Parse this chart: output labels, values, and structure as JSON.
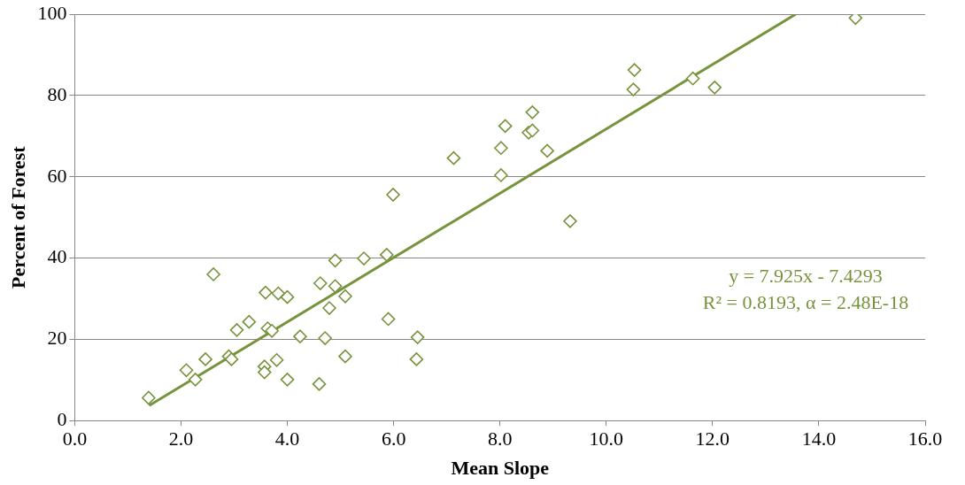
{
  "chart_data": {
    "type": "scatter",
    "xlabel": "Mean Slope",
    "ylabel": "Percent of Forest",
    "xlim": [
      0,
      16
    ],
    "xticks": [
      {
        "value": 0,
        "label": "0.0"
      },
      {
        "value": 2,
        "label": "2.0"
      },
      {
        "value": 4,
        "label": "4.0"
      },
      {
        "value": 6,
        "label": "6.0"
      },
      {
        "value": 8,
        "label": "8.0"
      },
      {
        "value": 10,
        "label": "10.0"
      },
      {
        "value": 12,
        "label": "12.0"
      },
      {
        "value": 14,
        "label": "14.0"
      },
      {
        "value": 16,
        "label": "16.0"
      }
    ],
    "ylim": [
      0,
      100
    ],
    "yticks": [
      0,
      20,
      40,
      60,
      80,
      100
    ],
    "grid": "y",
    "legend": false,
    "marker": "diamond",
    "series": [
      {
        "color": "#77933c",
        "x": [
          1.39,
          2.1,
          2.27,
          2.46,
          2.61,
          2.9,
          2.95,
          3.05,
          3.28,
          3.59,
          3.57,
          3.57,
          3.63,
          3.71,
          3.8,
          3.83,
          4.0,
          4.0,
          4.24,
          4.6,
          4.62,
          4.71,
          4.79,
          4.9,
          4.9,
          5.09,
          5.09,
          5.44,
          5.87,
          5.9,
          5.99,
          6.45,
          6.43,
          7.13,
          8.02,
          8.02,
          8.1,
          8.54,
          8.61,
          8.61,
          8.89,
          9.32,
          10.51,
          10.53,
          11.63,
          12.04,
          14.69
        ],
        "values": [
          5.6,
          12.4,
          10.1,
          15.1,
          36,
          15.8,
          15.1,
          22.3,
          24.3,
          31.5,
          13.3,
          11.9,
          22.7,
          22.1,
          14.9,
          31.3,
          30.4,
          10.1,
          20.7,
          9,
          33.8,
          20.3,
          27.7,
          33.1,
          39.4,
          30.6,
          15.8,
          39.9,
          40.8,
          25,
          55.6,
          20.5,
          15.1,
          64.6,
          60.4,
          67.1,
          72.5,
          70.9,
          71.4,
          75.9,
          66.4,
          49.1,
          81.5,
          86.3,
          84.2,
          82,
          99.1
        ]
      },
      {
        "type": "line",
        "color": "#77933c",
        "marker": "none",
        "x": [
          1.4,
          13.56
        ],
        "values": [
          3.7,
          100
        ]
      }
    ],
    "annotations": [
      "y = 7.925x - 7.4293",
      "R² = 0.8193, α = 2.48E-18"
    ]
  }
}
